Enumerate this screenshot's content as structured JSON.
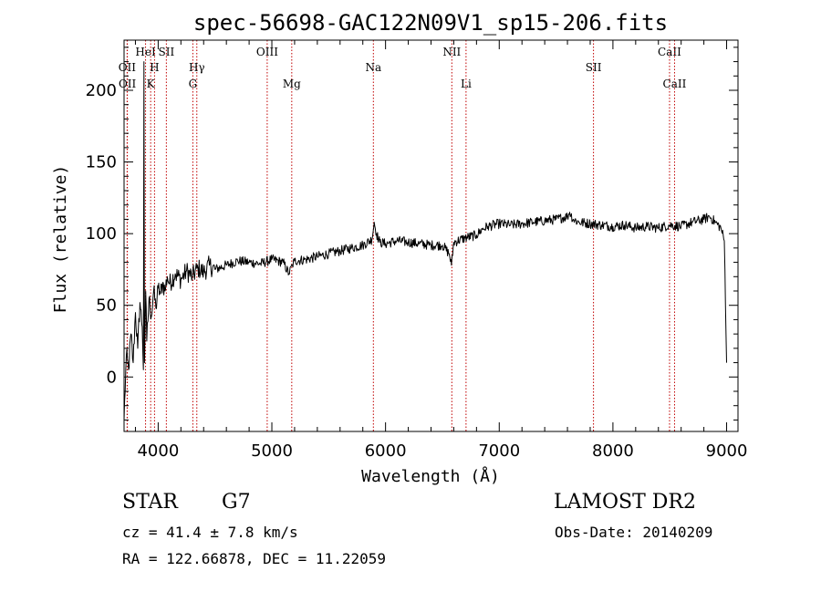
{
  "chart_data": {
    "type": "line",
    "title": "spec-56698-GAC122N09V1_sp15-206.fits",
    "xlabel": "Wavelength (Å)",
    "ylabel": "Flux (relative)",
    "xlim": [
      3700,
      9100
    ],
    "ylim": [
      -38,
      235
    ],
    "xticks": [
      4000,
      5000,
      6000,
      7000,
      8000,
      9000
    ],
    "yticks": [
      0,
      50,
      100,
      150,
      200
    ],
    "grid": false,
    "lines": [
      {
        "label": "OII",
        "wavelength": 3727,
        "row": 2
      },
      {
        "label": "OII",
        "wavelength": 3729,
        "row": 3
      },
      {
        "label": "HeI",
        "wavelength": 3889,
        "row": 1
      },
      {
        "label": "H",
        "wavelength": 3968,
        "row": 2
      },
      {
        "label": "K",
        "wavelength": 3934,
        "row": 3
      },
      {
        "label": "SII",
        "wavelength": 4072,
        "row": 1
      },
      {
        "label": "Hγ",
        "wavelength": 4340,
        "row": 2
      },
      {
        "label": "G",
        "wavelength": 4305,
        "row": 3
      },
      {
        "label": "OIII",
        "wavelength": 4959,
        "row": 1
      },
      {
        "label": "Mg",
        "wavelength": 5175,
        "row": 3
      },
      {
        "label": "Na",
        "wavelength": 5893,
        "row": 2
      },
      {
        "label": "NII",
        "wavelength": 6583,
        "row": 1
      },
      {
        "label": "Li",
        "wavelength": 6708,
        "row": 3
      },
      {
        "label": "SII",
        "wavelength": 7829,
        "row": 2
      },
      {
        "label": "CaII",
        "wavelength": 8498,
        "row": 1
      },
      {
        "label": "CaII",
        "wavelength": 8542,
        "row": 3
      }
    ],
    "series": [
      {
        "x": [
          3700,
          3720,
          3740,
          3760,
          3780,
          3800,
          3820,
          3840,
          3860,
          3870,
          3875,
          3880,
          3890,
          3900,
          3920,
          3940,
          3960,
          3980,
          4000,
          4020,
          4040,
          4060,
          4080,
          4100,
          4150,
          4200,
          4250,
          4300,
          4350,
          4400,
          4450,
          4500,
          4600,
          4700,
          4800,
          4900,
          5000,
          5100,
          5150,
          5180,
          5200,
          5300,
          5400,
          5500,
          5600,
          5700,
          5800,
          5880,
          5900,
          5920,
          5950,
          6000,
          6100,
          6200,
          6300,
          6400,
          6500,
          6560,
          6580,
          6600,
          6700,
          6800,
          6850,
          6900,
          7000,
          7100,
          7200,
          7300,
          7400,
          7500,
          7600,
          7620,
          7650,
          7700,
          7800,
          7900,
          8000,
          8100,
          8200,
          8300,
          8400,
          8500,
          8600,
          8700,
          8800,
          8850,
          8900,
          8950,
          8980,
          9000
        ],
        "y": [
          -30,
          15,
          5,
          30,
          10,
          45,
          20,
          52,
          35,
          5,
          220,
          10,
          60,
          25,
          55,
          42,
          60,
          48,
          62,
          58,
          66,
          60,
          70,
          65,
          72,
          68,
          74,
          70,
          76,
          73,
          78,
          75,
          78,
          81,
          80,
          79,
          82,
          80,
          72,
          78,
          81,
          82,
          84,
          86,
          88,
          90,
          92,
          96,
          108,
          100,
          94,
          93,
          95,
          94,
          93,
          92,
          92,
          86,
          78,
          94,
          97,
          99,
          103,
          105,
          107,
          106,
          107,
          108,
          109,
          110,
          112,
          115,
          110,
          108,
          107,
          106,
          105,
          106,
          104,
          105,
          104,
          106,
          105,
          108,
          110,
          112,
          108,
          104,
          95,
          10
        ]
      }
    ]
  },
  "info": {
    "object_type": "STAR",
    "subclass": "G7",
    "survey": "LAMOST DR2",
    "cz": "cz = 41.4 ± 7.8 km/s",
    "obs_date": "Obs-Date: 20140209",
    "coords": "RA = 122.66878, DEC =  11.22059"
  }
}
